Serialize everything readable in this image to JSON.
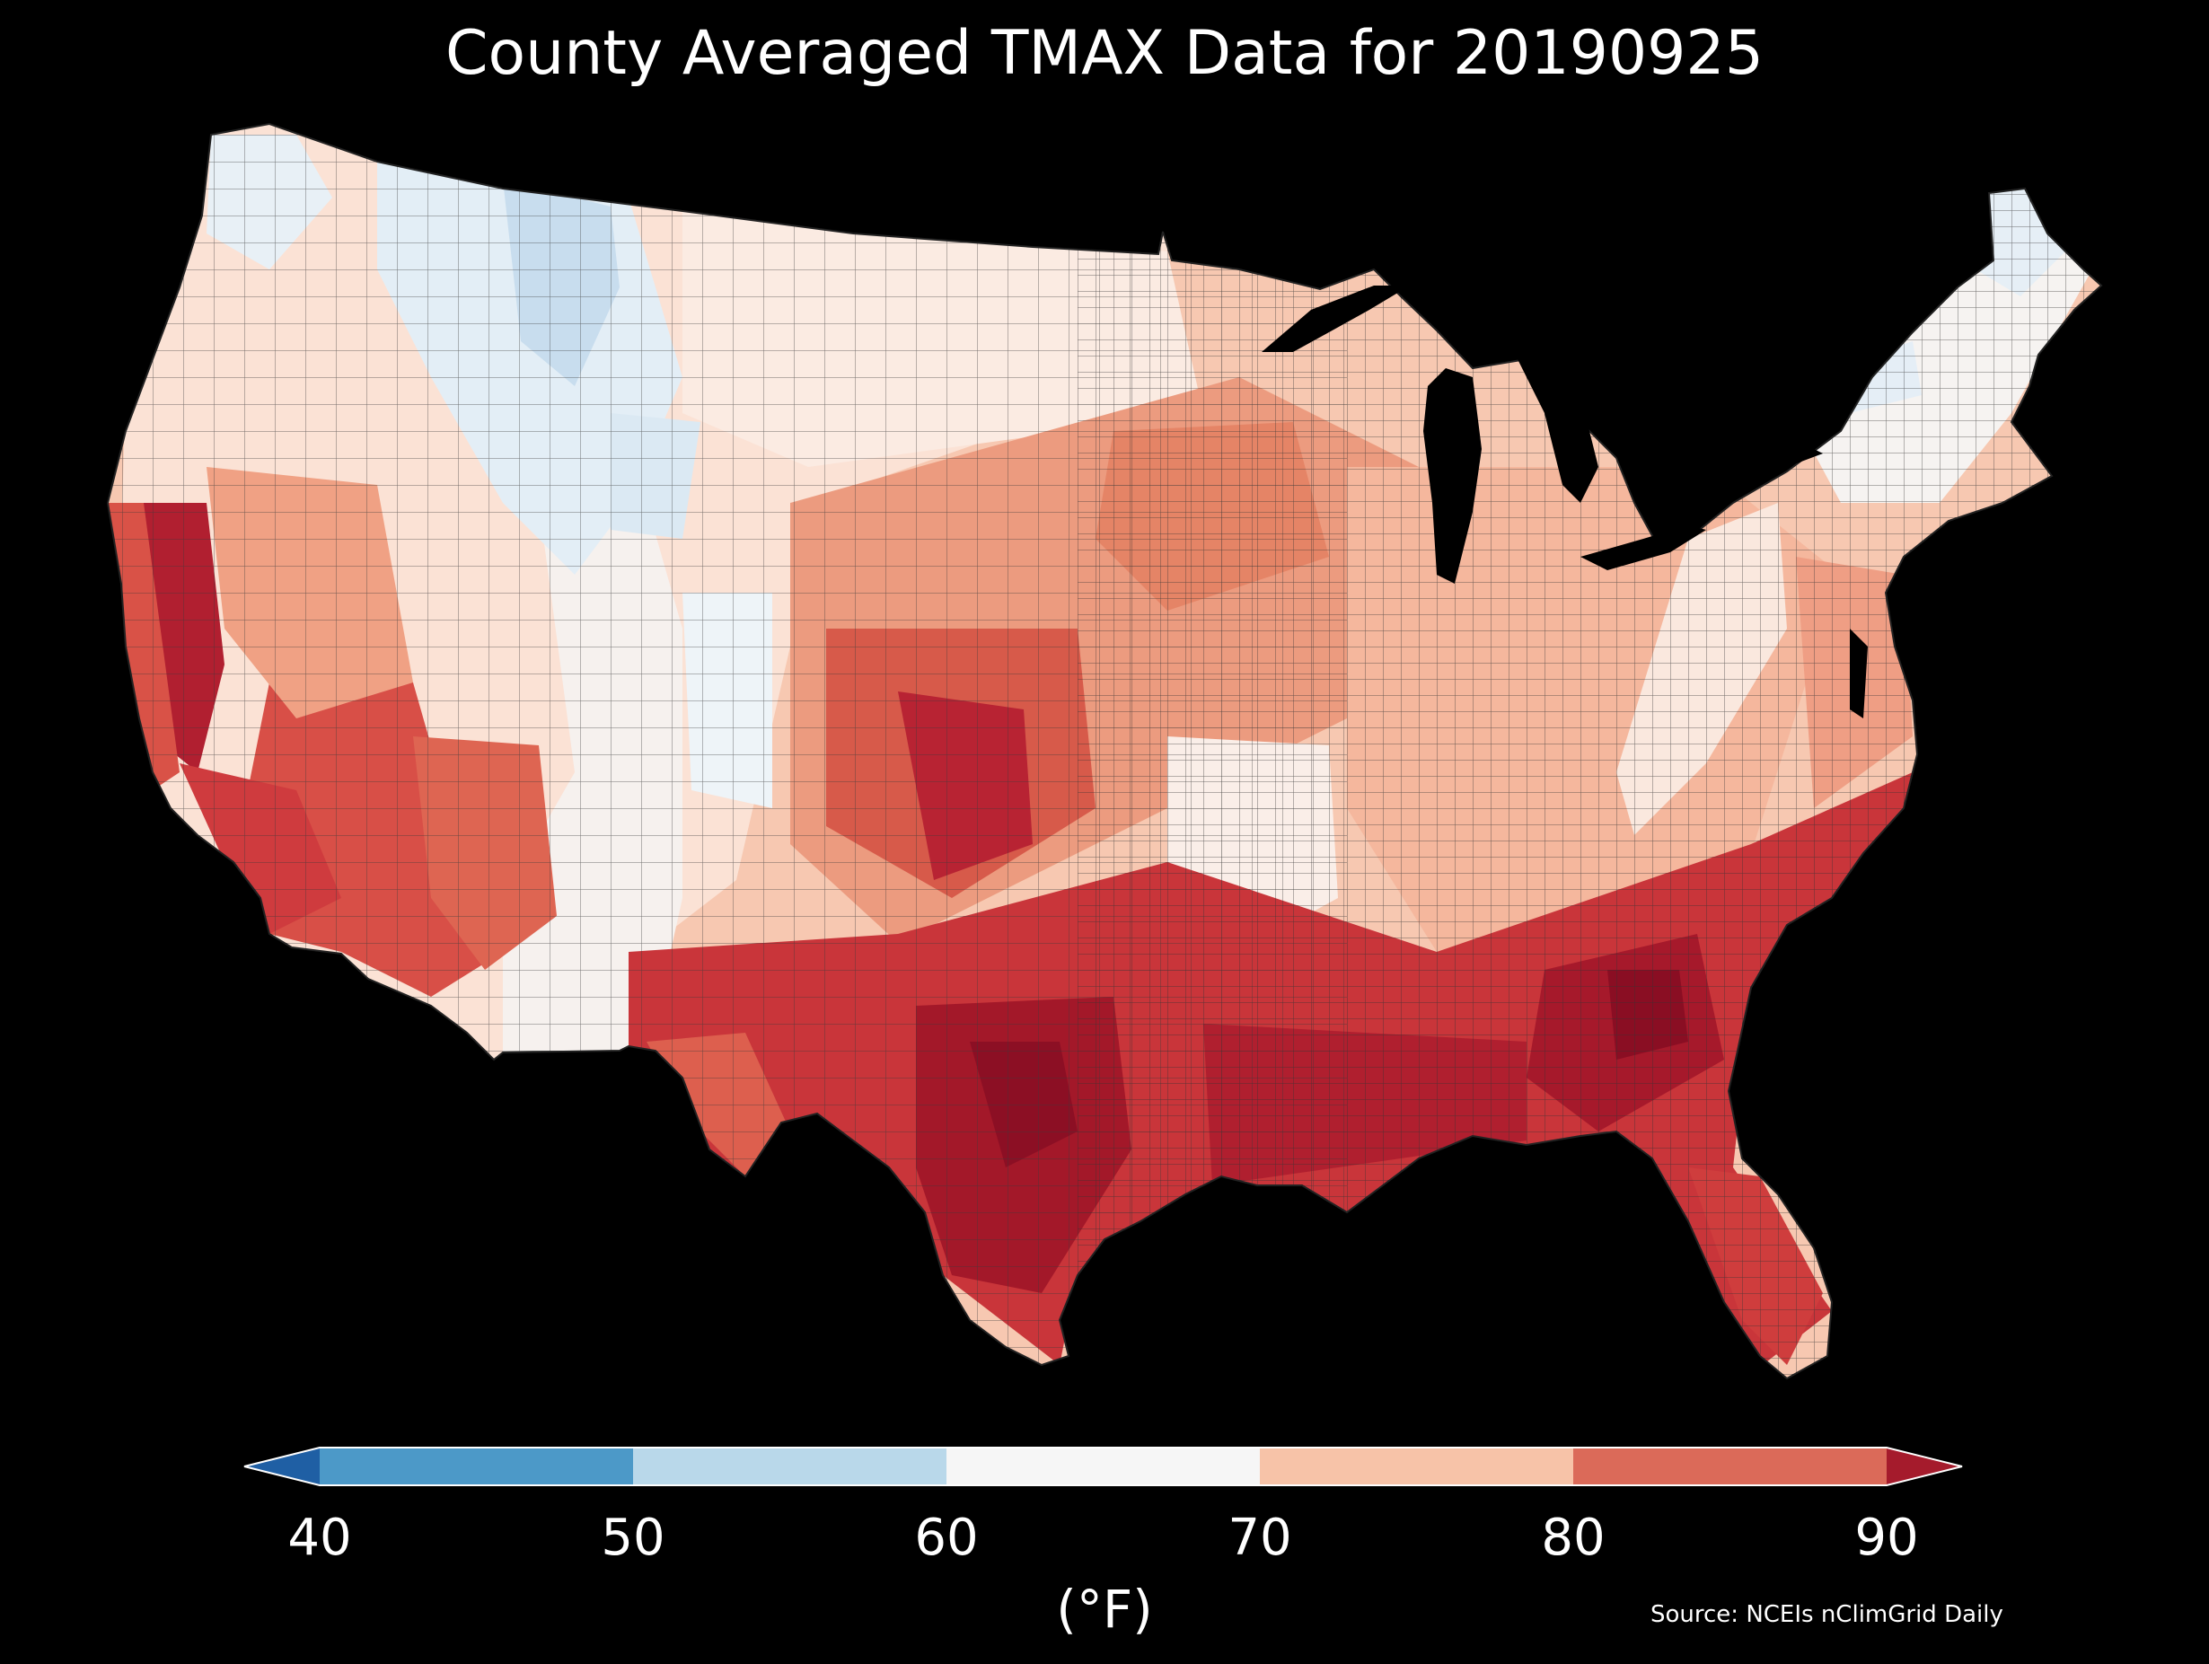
{
  "title": "County Averaged TMAX Data for 20190925",
  "source": "Source: NCEIs nClimGrid Daily",
  "colorbar": {
    "units": "(°F)",
    "ticks": [
      "40",
      "50",
      "60",
      "70",
      "80",
      "90"
    ],
    "bins": [
      {
        "range": "<40",
        "color": "#1f5fa4"
      },
      {
        "range": "40-50",
        "color": "#4c99c8"
      },
      {
        "range": "50-60",
        "color": "#b9d8ea"
      },
      {
        "range": "60-70",
        "color": "#f6f6f6"
      },
      {
        "range": "70-80",
        "color": "#f7c3a8"
      },
      {
        "range": "80-90",
        "color": "#db6a59"
      },
      {
        "range": ">90",
        "color": "#a51b2c"
      }
    ]
  },
  "map": {
    "region": "Contiguous United States",
    "variable": "TMAX",
    "date": "20190925",
    "land_colors": {
      "cold": "#c7dcee",
      "cool": "#eaf2f8",
      "mild": "#f7f7f7",
      "warm": "#fbe0d2",
      "hot": "#f2a98f",
      "hotter": "#dc5f4f",
      "hottest": "#b41f2e",
      "extreme": "#8c0f24"
    },
    "water_color": "#000000",
    "border_color": "#2a2a2a"
  }
}
